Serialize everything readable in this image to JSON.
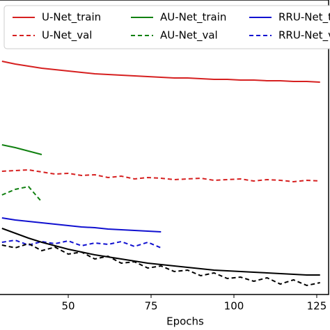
{
  "chart_data": {
    "type": "line",
    "x_label": "Epochs",
    "x": [
      30,
      34,
      38,
      42,
      46,
      50,
      54,
      58,
      62,
      66,
      70,
      74,
      78,
      82,
      86,
      90,
      94,
      98,
      102,
      106,
      110,
      114,
      118,
      122,
      126
    ],
    "xlim": [
      29.4,
      129
    ],
    "xticks": [
      50,
      75,
      100,
      125
    ],
    "ylim": [
      0,
      423
    ],
    "legend": "upper right",
    "series": [
      {
        "name": "U-Net_train",
        "color": "#d62020",
        "dashed": false,
        "values": [
          335,
          331,
          328,
          325,
          323,
          321,
          319,
          317,
          316,
          315,
          314,
          313,
          312,
          311,
          311,
          310,
          309,
          309,
          308,
          308,
          307,
          307,
          306,
          306,
          305
        ]
      },
      {
        "name": "U-Net_val",
        "color": "#d62020",
        "dashed": true,
        "values": [
          177,
          178,
          179,
          176,
          173,
          174,
          171,
          172,
          168,
          170,
          166,
          168,
          167,
          165,
          166,
          167,
          164,
          165,
          166,
          163,
          165,
          164,
          162,
          164,
          163
        ]
      },
      {
        "name": "AU-Net_train",
        "color": "#108010",
        "dashed": false,
        "values": [
          215,
          211,
          206,
          201,
          null,
          null,
          null,
          null,
          null,
          null,
          null,
          null,
          null,
          null,
          null,
          null,
          null,
          null,
          null,
          null,
          null,
          null,
          null,
          null,
          null
        ]
      },
      {
        "name": "AU-Net_val",
        "color": "#108010",
        "dashed": true,
        "values": [
          143,
          151,
          155,
          133,
          null,
          null,
          null,
          null,
          null,
          null,
          null,
          null,
          null,
          null,
          null,
          null,
          null,
          null,
          null,
          null,
          null,
          null,
          null,
          null,
          null
        ]
      },
      {
        "name": "RRU-Net_train",
        "color": "#1010d0",
        "dashed": false,
        "values": [
          110,
          107,
          105,
          103,
          101,
          99,
          97,
          96,
          94,
          93,
          92,
          91,
          90,
          null,
          null,
          null,
          null,
          null,
          null,
          null,
          null,
          null,
          null,
          null,
          null
        ]
      },
      {
        "name": "RRU-Net_val",
        "color": "#1010d0",
        "dashed": true,
        "values": [
          75,
          78,
          71,
          76,
          73,
          77,
          70,
          74,
          72,
          76,
          69,
          75,
          67,
          null,
          null,
          null,
          null,
          null,
          null,
          null,
          null,
          null,
          null,
          null,
          null
        ]
      },
      {
        "color": "#000000",
        "dashed": false,
        "values": [
          95,
          88,
          81,
          75,
          70,
          65,
          61,
          57,
          54,
          51,
          48,
          45,
          43,
          41,
          39,
          37,
          35,
          34,
          33,
          32,
          31,
          30,
          29,
          28,
          28
        ]
      },
      {
        "color": "#000000",
        "dashed": true,
        "values": [
          71,
          67,
          73,
          63,
          68,
          58,
          61,
          51,
          55,
          45,
          47,
          38,
          41,
          33,
          35,
          27,
          31,
          23,
          25,
          19,
          24,
          15,
          21,
          13,
          17
        ]
      }
    ]
  }
}
